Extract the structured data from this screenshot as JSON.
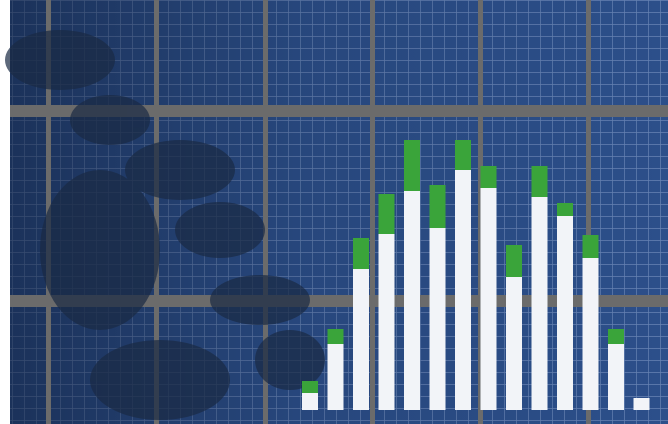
{
  "chart_data": {
    "type": "bar",
    "stacked": true,
    "categories": [
      null,
      null,
      null,
      null,
      null,
      null,
      null,
      null,
      null,
      null,
      null,
      null,
      null,
      null
    ],
    "series": [
      {
        "color": "#f2f4f8",
        "values": [
          17,
          66,
          141,
          176,
          219,
          182,
          240,
          222,
          133,
          213,
          194,
          152,
          66,
          12
        ]
      },
      {
        "color": "#3aa43a",
        "values": [
          12,
          15,
          31,
          40,
          51,
          43,
          30,
          22,
          32,
          31,
          13,
          23,
          15,
          0
        ]
      }
    ],
    "ylim": [
      0,
      410
    ]
  }
}
